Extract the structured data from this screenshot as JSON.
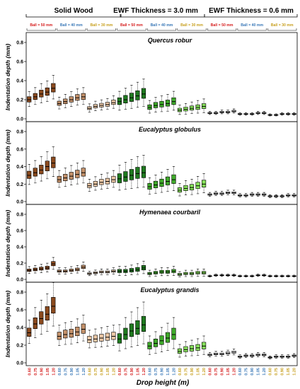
{
  "figure": {
    "header": {
      "groups": [
        "Solid Wood",
        "EWF Thickness = 3.0 mm",
        "EWF Thickness = 0.6 mm"
      ],
      "ball_labels": [
        {
          "text": "Ball = 50 mm",
          "color": "#d62020"
        },
        {
          "text": "Ball = 40 mm",
          "color": "#3b79b8"
        },
        {
          "text": "Ball = 30 mm",
          "color": "#c8a020"
        }
      ]
    },
    "ylabel": "Indentation depth (mm)",
    "xlabel": "Drop height (m)",
    "x_ticks": [
      "0.60",
      "0.75",
      "0.90",
      "1.05",
      "1.20",
      "0.60",
      "0.75",
      "0.90",
      "1.05",
      "1.20",
      "0.60",
      "0.75",
      "0.90",
      "1.05",
      "1.20",
      "0.60",
      "0.75",
      "0.90",
      "1.05",
      "1.20",
      "0.60",
      "0.75",
      "0.90",
      "1.05",
      "1.20",
      "0.60",
      "0.75",
      "0.90",
      "1.05",
      "1.20",
      "0.60",
      "0.75",
      "0.90",
      "1.05",
      "1.20",
      "0.60",
      "0.75",
      "0.90",
      "1.05",
      "1.20",
      "0.60",
      "0.75",
      "0.90",
      "1.05",
      "1.20"
    ],
    "x_tick_colors": [
      "#d62020",
      "#3b79b8",
      "#c8a020"
    ],
    "box_colors": [
      "#8b4a1e",
      "#c4916a",
      "#ecc8a6",
      "#1f7a1f",
      "#3faa2a",
      "#86e05a",
      "#ffffff",
      "#ffffff",
      "#ffffff"
    ]
  },
  "chart_data": [
    {
      "type": "box",
      "title": "Quercus robur",
      "ylim": [
        0,
        0.8
      ],
      "yticks": [
        "0.0",
        "0.2",
        "0.4",
        "0.6",
        "0.8"
      ],
      "categories": [
        "0.60",
        "0.75",
        "0.90",
        "1.05",
        "1.20"
      ],
      "series": [
        {
          "name": "Solid Wood, Ball = 50 mm",
          "median": [
            0.2,
            0.23,
            0.26,
            0.28,
            0.32
          ]
        },
        {
          "name": "Solid Wood, Ball = 40 mm",
          "median": [
            0.16,
            0.18,
            0.2,
            0.22,
            0.23
          ]
        },
        {
          "name": "Solid Wood, Ball = 30 mm",
          "median": [
            0.11,
            0.13,
            0.14,
            0.15,
            0.17
          ]
        },
        {
          "name": "EWF Thickness = 3.0 mm, Ball = 50 mm",
          "median": [
            0.18,
            0.2,
            0.22,
            0.24,
            0.26
          ]
        },
        {
          "name": "EWF Thickness = 3.0 mm, Ball = 40 mm",
          "median": [
            0.12,
            0.14,
            0.15,
            0.16,
            0.18
          ]
        },
        {
          "name": "EWF Thickness = 3.0 mm, Ball = 30 mm",
          "median": [
            0.09,
            0.1,
            0.11,
            0.12,
            0.13
          ]
        },
        {
          "name": "EWF Thickness = 0.6 mm, Ball = 50 mm",
          "median": [
            0.06,
            0.06,
            0.07,
            0.07,
            0.08
          ]
        },
        {
          "name": "EWF Thickness = 0.6 mm, Ball = 40 mm",
          "median": [
            0.05,
            0.05,
            0.05,
            0.06,
            0.06
          ]
        },
        {
          "name": "EWF Thickness = 0.6 mm, Ball = 30 mm",
          "median": [
            0.04,
            0.04,
            0.05,
            0.05,
            0.05
          ]
        }
      ]
    },
    {
      "type": "box",
      "title": "Eucalyptus globulus",
      "ylim": [
        0,
        0.8
      ],
      "yticks": [
        "0.0",
        "0.2",
        "0.4",
        "0.6",
        "0.8"
      ],
      "categories": [
        "0.60",
        "0.75",
        "0.90",
        "1.05",
        "1.20"
      ],
      "series": [
        {
          "name": "Solid Wood, Ball = 50 mm",
          "median": [
            0.3,
            0.33,
            0.36,
            0.4,
            0.44
          ]
        },
        {
          "name": "Solid Wood, Ball = 40 mm",
          "median": [
            0.25,
            0.27,
            0.29,
            0.31,
            0.33
          ]
        },
        {
          "name": "Solid Wood, Ball = 30 mm",
          "median": [
            0.18,
            0.2,
            0.22,
            0.23,
            0.25
          ]
        },
        {
          "name": "EWF Thickness = 3.0 mm, Ball = 50 mm",
          "median": [
            0.26,
            0.28,
            0.3,
            0.32,
            0.33
          ]
        },
        {
          "name": "EWF Thickness = 3.0 mm, Ball = 40 mm",
          "median": [
            0.17,
            0.19,
            0.21,
            0.23,
            0.25
          ]
        },
        {
          "name": "EWF Thickness = 3.0 mm, Ball = 30 mm",
          "median": [
            0.13,
            0.15,
            0.16,
            0.18,
            0.2
          ]
        },
        {
          "name": "EWF Thickness = 0.6 mm, Ball = 50 mm",
          "median": [
            0.08,
            0.09,
            0.09,
            0.1,
            0.1
          ]
        },
        {
          "name": "EWF Thickness = 0.6 mm, Ball = 40 mm",
          "median": [
            0.07,
            0.07,
            0.08,
            0.08,
            0.08
          ]
        },
        {
          "name": "EWF Thickness = 0.6 mm, Ball = 30 mm",
          "median": [
            0.06,
            0.06,
            0.06,
            0.07,
            0.07
          ]
        }
      ]
    },
    {
      "type": "box",
      "title": "Hymenaea courbaril",
      "ylim": [
        0,
        0.8
      ],
      "yticks": [
        "0.0",
        "0.2",
        "0.4",
        "0.6",
        "0.8"
      ],
      "categories": [
        "0.60",
        "0.75",
        "0.90",
        "1.05",
        "1.20"
      ],
      "series": [
        {
          "name": "Solid Wood, Ball = 50 mm",
          "median": [
            0.11,
            0.12,
            0.13,
            0.14,
            0.19
          ]
        },
        {
          "name": "Solid Wood, Ball = 40 mm",
          "median": [
            0.1,
            0.1,
            0.11,
            0.12,
            0.15
          ]
        },
        {
          "name": "Solid Wood, Ball = 30 mm",
          "median": [
            0.07,
            0.08,
            0.09,
            0.09,
            0.1
          ]
        },
        {
          "name": "EWF Thickness = 3.0 mm, Ball = 50 mm",
          "median": [
            0.1,
            0.1,
            0.11,
            0.12,
            0.14
          ]
        },
        {
          "name": "EWF Thickness = 3.0 mm, Ball = 40 mm",
          "median": [
            0.07,
            0.08,
            0.09,
            0.09,
            0.1
          ]
        },
        {
          "name": "EWF Thickness = 3.0 mm, Ball = 30 mm",
          "median": [
            0.06,
            0.07,
            0.07,
            0.08,
            0.08
          ]
        },
        {
          "name": "EWF Thickness = 0.6 mm, Ball = 50 mm",
          "median": [
            0.04,
            0.05,
            0.05,
            0.05,
            0.05
          ]
        },
        {
          "name": "EWF Thickness = 0.6 mm, Ball = 40 mm",
          "median": [
            0.04,
            0.04,
            0.04,
            0.05,
            0.05
          ]
        },
        {
          "name": "EWF Thickness = 0.6 mm, Ball = 30 mm",
          "median": [
            0.04,
            0.04,
            0.04,
            0.04,
            0.04
          ]
        }
      ]
    },
    {
      "type": "box",
      "title": "Eucalyptus grandis",
      "ylim": [
        0,
        0.8
      ],
      "yticks": [
        "0.0",
        "0.2",
        "0.4",
        "0.6",
        "0.8"
      ],
      "categories": [
        "0.60",
        "0.75",
        "0.90",
        "1.05",
        "1.20"
      ],
      "series": [
        {
          "name": "Solid Wood, Ball = 50 mm",
          "median": [
            0.34,
            0.44,
            0.5,
            0.55,
            0.64
          ]
        },
        {
          "name": "Solid Wood, Ball = 40 mm",
          "median": [
            0.3,
            0.32,
            0.33,
            0.35,
            0.38
          ]
        },
        {
          "name": "Solid Wood, Ball = 30 mm",
          "median": [
            0.26,
            0.27,
            0.28,
            0.29,
            0.3
          ]
        },
        {
          "name": "EWF Thickness = 3.0 mm, Ball = 50 mm",
          "median": [
            0.27,
            0.32,
            0.36,
            0.39,
            0.43
          ]
        },
        {
          "name": "EWF Thickness = 3.0 mm, Ball = 40 mm",
          "median": [
            0.19,
            0.22,
            0.25,
            0.28,
            0.32
          ]
        },
        {
          "name": "EWF Thickness = 3.0 mm, Ball = 30 mm",
          "median": [
            0.13,
            0.15,
            0.16,
            0.17,
            0.19
          ]
        },
        {
          "name": "EWF Thickness = 0.6 mm, Ball = 50 mm",
          "median": [
            0.09,
            0.1,
            0.1,
            0.11,
            0.12
          ]
        },
        {
          "name": "EWF Thickness = 0.6 mm, Ball = 40 mm",
          "median": [
            0.07,
            0.08,
            0.08,
            0.09,
            0.09
          ]
        },
        {
          "name": "EWF Thickness = 0.6 mm, Ball = 30 mm",
          "median": [
            0.06,
            0.07,
            0.07,
            0.07,
            0.08
          ]
        }
      ]
    }
  ]
}
